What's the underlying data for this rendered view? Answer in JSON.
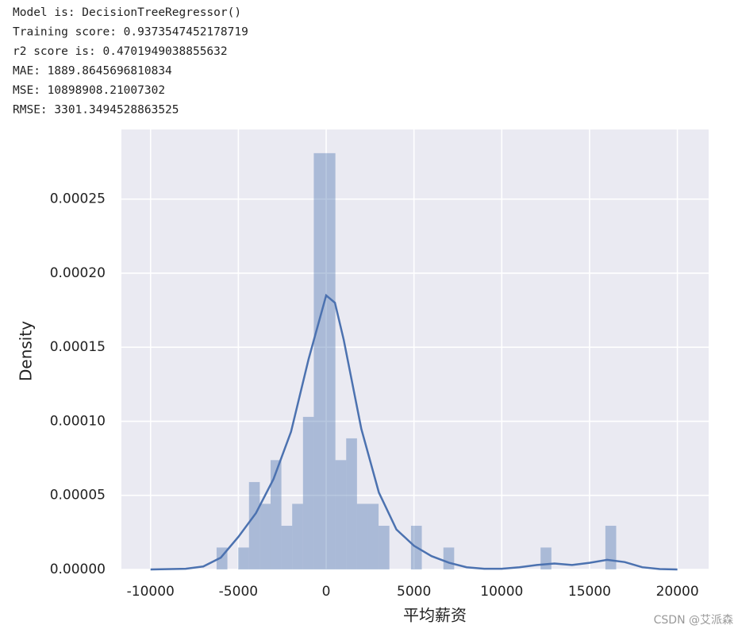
{
  "output_lines": [
    "Model is:  DecisionTreeRegressor()",
    "Training score:  0.9373547452178719",
    "r2 score is:  0.4701949038855632",
    "MAE: 1889.8645696810834",
    "MSE: 10898908.21007302",
    "RMSE: 3301.3494528863525"
  ],
  "watermark": "CSDN @艾派森",
  "chart_data": {
    "type": "histogram",
    "xlabel": "平均薪资",
    "ylabel": "Density",
    "bins": [
      -6240,
      -5625,
      -5010,
      -4395,
      -3780,
      -3165,
      -2550,
      -1935,
      -1320,
      -705,
      -90,
      525,
      1140,
      1755,
      2370,
      2985,
      3600,
      4215,
      4830,
      5445,
      6060,
      6675,
      7290,
      7905,
      8520,
      9135,
      9750,
      10365,
      10980,
      11595,
      12210,
      12825,
      13440,
      14055,
      14670,
      15285,
      15900,
      16515
    ],
    "values": [
      1.48e-05,
      0,
      1.48e-05,
      5.9e-05,
      4.43e-05,
      7.38e-05,
      2.95e-05,
      4.43e-05,
      0.000103,
      0.000281,
      0.000281,
      7.38e-05,
      8.85e-05,
      4.43e-05,
      4.43e-05,
      2.95e-05,
      0,
      0,
      2.95e-05,
      0,
      0,
      1.48e-05,
      0,
      0,
      0,
      0,
      0,
      0,
      0,
      0,
      1.48e-05,
      0,
      0,
      0,
      0,
      0,
      2.95e-05
    ],
    "color": "#4c72b0",
    "kde": {
      "color": "#4c72b0",
      "x": [
        -10000,
        -8000,
        -7000,
        -6000,
        -5000,
        -4000,
        -3000,
        -2000,
        -1000,
        0,
        500,
        1000,
        2000,
        3000,
        4000,
        5000,
        6000,
        7000,
        8000,
        9000,
        10000,
        11000,
        12000,
        13000,
        14000,
        15000,
        16000,
        17000,
        18000,
        19000,
        20000
      ],
      "values": [
        0,
        5e-07,
        2e-06,
        8e-06,
        2.2e-05,
        3.8e-05,
        6.1e-05,
        9.3e-05,
        0.000142,
        0.000185,
        0.00018,
        0.000155,
        9.5e-05,
        5.2e-05,
        2.7e-05,
        1.6e-05,
        9e-06,
        4.5e-06,
        1.5e-06,
        5e-07,
        5e-07,
        1.5e-06,
        3e-06,
        4e-06,
        3e-06,
        4.5e-06,
        6.5e-06,
        5e-06,
        1.5e-06,
        3e-07,
        0
      ]
    },
    "xlim": [
      -11660,
      21780
    ],
    "ylim": [
      0,
      0.000297
    ],
    "xticks": [
      -10000,
      -5000,
      0,
      5000,
      10000,
      15000,
      20000
    ],
    "yticks": [
      {
        "value": 0,
        "label": "0.00000"
      },
      {
        "value": 5e-05,
        "label": "0.00005"
      },
      {
        "value": 0.0001,
        "label": "0.00010"
      },
      {
        "value": 0.00015,
        "label": "0.00015"
      },
      {
        "value": 0.0002,
        "label": "0.00020"
      },
      {
        "value": 0.00025,
        "label": "0.00025"
      }
    ],
    "grid": true
  }
}
